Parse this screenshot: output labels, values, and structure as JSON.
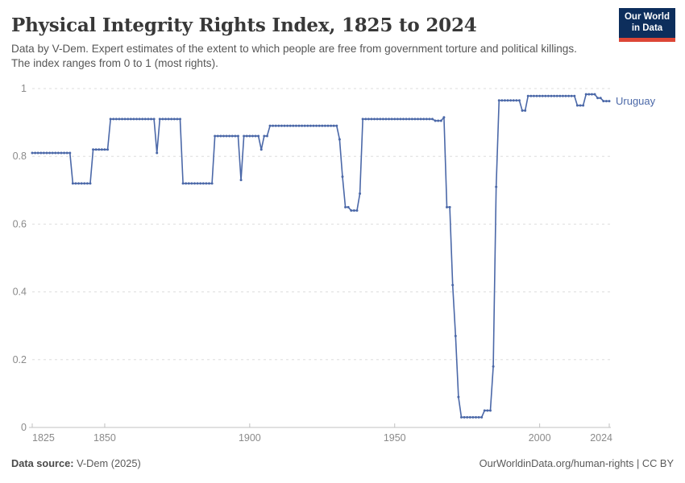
{
  "header": {
    "title": "Physical Integrity Rights Index, 1825 to 2024",
    "subtitle": "Data by V-Dem. Expert estimates of the extent to which people are free from government torture and political killings. The index ranges from 0 to 1 (most rights).",
    "logo_line1": "Our World",
    "logo_line2": "in Data"
  },
  "footer": {
    "source_label": "Data source:",
    "source_value": "V-Dem (2025)",
    "link": "OurWorldinData.org/human-rights",
    "separator": " | ",
    "license": "CC BY"
  },
  "colors": {
    "line": "#4b68a8",
    "entity_label": "#4b68a8",
    "gridline": "#dddddd",
    "axis": "#c0c0c0",
    "tick_text": "#8a8a8a",
    "logo_bg": "#0d2e5c",
    "logo_stripe": "#dd4636"
  },
  "chart_data": {
    "type": "line",
    "title": "Physical Integrity Rights Index, 1825 to 2024",
    "xlabel": "",
    "ylabel": "",
    "grid": "dashed horizontal",
    "legend_position": "right-of-line",
    "x": {
      "min": 1825,
      "max": 2024,
      "tick_labels": [
        "1825",
        "1850",
        "1900",
        "1950",
        "2000",
        "2024"
      ],
      "tick_values": [
        1825,
        1850,
        1900,
        1950,
        2000,
        2024
      ]
    },
    "y": {
      "min": 0,
      "max": 1,
      "tick_labels": [
        "0",
        "0.2",
        "0.4",
        "0.6",
        "0.8",
        "1"
      ],
      "tick_values": [
        0,
        0.2,
        0.4,
        0.6,
        0.8,
        1
      ]
    },
    "series": [
      {
        "name": "Uruguay",
        "color": "#4b68a8",
        "runs_note": "each run is [start_year, end_year, index_value], one data point per year",
        "runs": [
          [
            1825,
            1838,
            0.81
          ],
          [
            1839,
            1845,
            0.72
          ],
          [
            1846,
            1851,
            0.82
          ],
          [
            1852,
            1867,
            0.91
          ],
          [
            1868,
            1868,
            0.81
          ],
          [
            1869,
            1876,
            0.91
          ],
          [
            1877,
            1887,
            0.72
          ],
          [
            1888,
            1896,
            0.86
          ],
          [
            1897,
            1897,
            0.73
          ],
          [
            1898,
            1903,
            0.86
          ],
          [
            1904,
            1904,
            0.82
          ],
          [
            1905,
            1906,
            0.86
          ],
          [
            1907,
            1930,
            0.89
          ],
          [
            1931,
            1931,
            0.85
          ],
          [
            1932,
            1932,
            0.74
          ],
          [
            1933,
            1934,
            0.65
          ],
          [
            1935,
            1937,
            0.64
          ],
          [
            1938,
            1938,
            0.69
          ],
          [
            1939,
            1963,
            0.91
          ],
          [
            1964,
            1966,
            0.905
          ],
          [
            1967,
            1967,
            0.915
          ],
          [
            1968,
            1969,
            0.65
          ],
          [
            1970,
            1970,
            0.42
          ],
          [
            1971,
            1971,
            0.27
          ],
          [
            1972,
            1972,
            0.09
          ],
          [
            1973,
            1980,
            0.03
          ],
          [
            1981,
            1983,
            0.05
          ],
          [
            1984,
            1984,
            0.18
          ],
          [
            1985,
            1985,
            0.71
          ],
          [
            1986,
            1993,
            0.965
          ],
          [
            1994,
            1995,
            0.935
          ],
          [
            1996,
            2012,
            0.978
          ],
          [
            2013,
            2015,
            0.95
          ],
          [
            2016,
            2019,
            0.983
          ],
          [
            2020,
            2021,
            0.972
          ],
          [
            2022,
            2024,
            0.963
          ]
        ]
      }
    ]
  }
}
